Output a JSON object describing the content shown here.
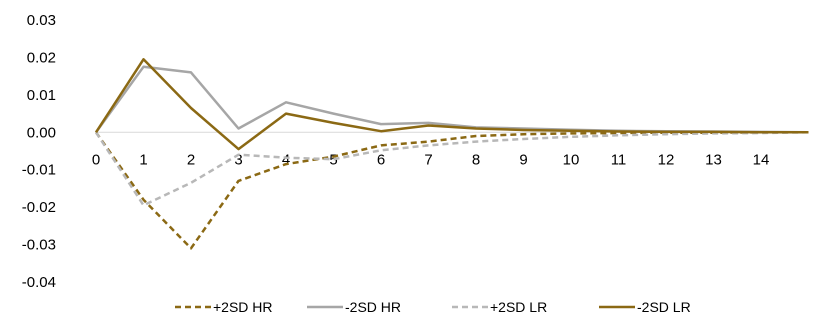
{
  "chart_data": {
    "type": "line",
    "title": "",
    "xlabel": "",
    "ylabel": "",
    "x": [
      0,
      1,
      2,
      3,
      4,
      5,
      6,
      7,
      8,
      9,
      10,
      11,
      12,
      13,
      14,
      15
    ],
    "x_tick_labels": [
      "0",
      "1",
      "2",
      "3",
      "4",
      "5",
      "6",
      "7",
      "8",
      "9",
      "10",
      "11",
      "12",
      "13",
      "14"
    ],
    "y_tick_labels": [
      "0.03",
      "0.02",
      "0.01",
      "0.00",
      "-0.01",
      "-0.02",
      "-0.03",
      "-0.04"
    ],
    "y_ticks": [
      0.03,
      0.02,
      0.01,
      0.0,
      -0.01,
      -0.02,
      -0.03,
      -0.04
    ],
    "ylim": [
      -0.04,
      0.03
    ],
    "grid": false,
    "legend_position": "bottom",
    "series": [
      {
        "name": "+2SD HR",
        "color": "#8B6914",
        "dash": "dashed",
        "values": [
          0,
          -0.018,
          -0.031,
          -0.013,
          -0.0085,
          -0.0065,
          -0.0035,
          -0.0025,
          -0.001,
          -0.0005,
          -0.0003,
          -0.0002,
          -0.0001,
          -0.0001,
          0,
          0
        ]
      },
      {
        "name": "-2SD HR",
        "color": "#A6A6A6",
        "dash": "solid",
        "values": [
          0,
          0.0175,
          0.016,
          0.001,
          0.008,
          0.005,
          0.0022,
          0.0025,
          0.0013,
          0.001,
          0.0007,
          0.0004,
          0.0003,
          0.0002,
          0.0001,
          0
        ]
      },
      {
        "name": "+2SD LR",
        "color": "#B8B8B8",
        "dash": "dashed",
        "values": [
          0,
          -0.0195,
          -0.0135,
          -0.006,
          -0.0068,
          -0.0072,
          -0.0048,
          -0.0035,
          -0.0025,
          -0.0018,
          -0.0012,
          -0.0008,
          -0.0005,
          -0.0003,
          -0.0002,
          0
        ]
      },
      {
        "name": "-2SD LR",
        "color": "#8B6914",
        "dash": "solid",
        "values": [
          0,
          0.0195,
          0.0065,
          -0.0045,
          0.005,
          0.0025,
          0.0003,
          0.0018,
          0.001,
          0.0006,
          0.0004,
          0.0002,
          0.0001,
          0.0001,
          0,
          0
        ]
      }
    ]
  }
}
